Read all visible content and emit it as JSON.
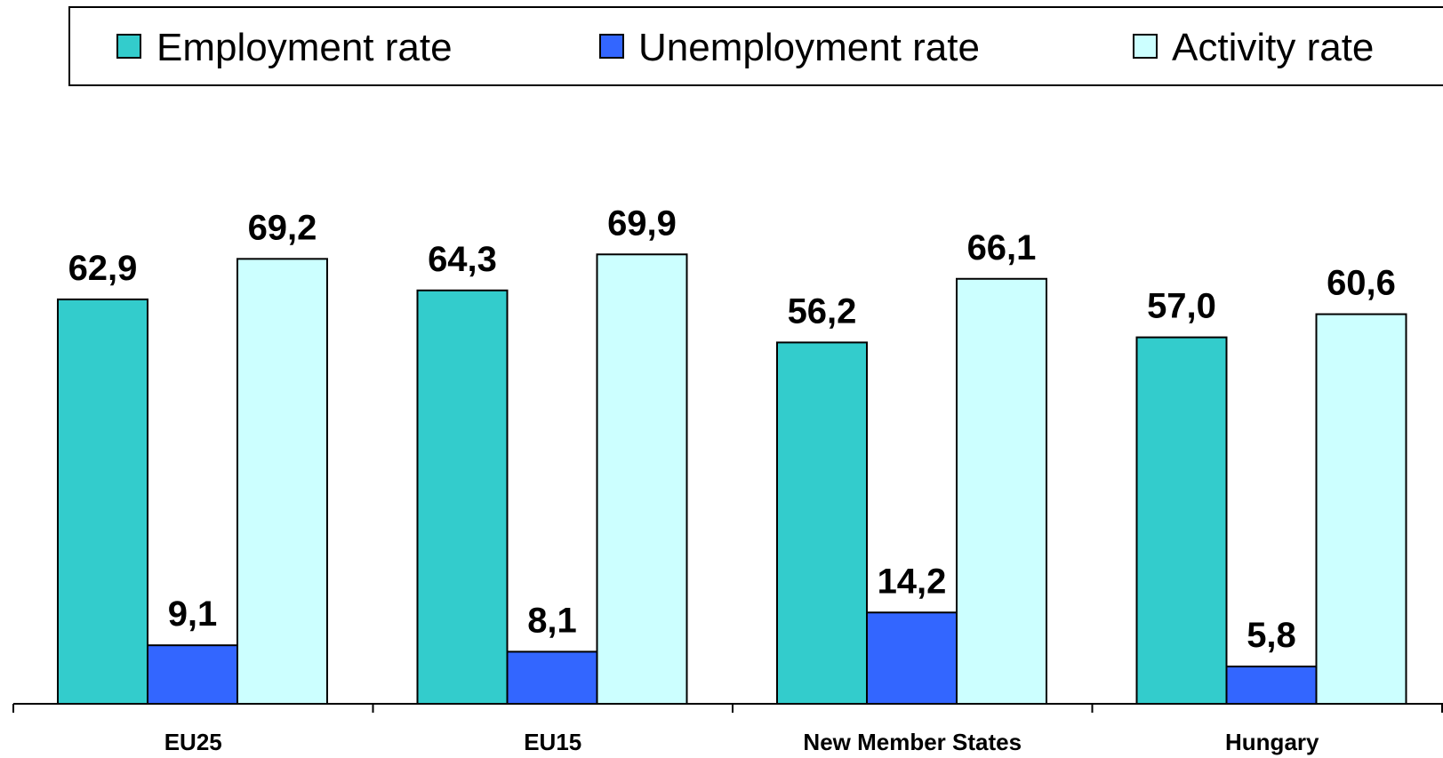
{
  "chart_data": {
    "type": "bar",
    "categories": [
      "EU25",
      "EU15",
      "New Member States",
      "Hungary"
    ],
    "series": [
      {
        "name": "Employment rate",
        "values": [
          62.9,
          64.3,
          56.2,
          57.0
        ],
        "labels": [
          "62,9",
          "64,3",
          "56,2",
          "57,0"
        ],
        "color": "#33CCCC"
      },
      {
        "name": "Unemployment rate",
        "values": [
          9.1,
          8.1,
          14.2,
          5.8
        ],
        "labels": [
          "9,1",
          "8,1",
          "14,2",
          "5,8"
        ],
        "color": "#3366FF"
      },
      {
        "name": "Activity rate",
        "values": [
          69.2,
          69.9,
          66.1,
          60.6
        ],
        "labels": [
          "69,2",
          "69,9",
          "66,1",
          "60,6"
        ],
        "color": "#CCFFFF"
      }
    ],
    "ylim": [
      0,
      70
    ],
    "grid": false,
    "legend_position": "top",
    "title": "",
    "xlabel": "",
    "ylabel": ""
  }
}
